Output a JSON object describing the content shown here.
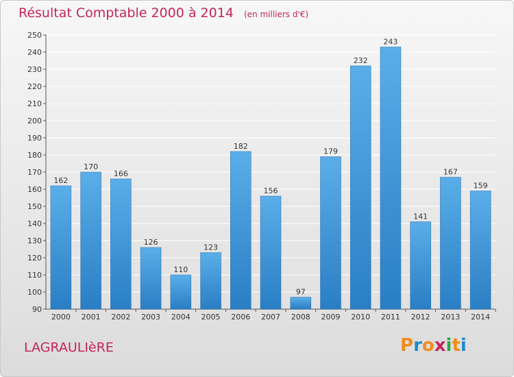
{
  "title": "Résultat Comptable 2000 à 2014",
  "unit_note": "(en milliers d'€)",
  "commune": "LAGRAULIèRE",
  "logo": {
    "text": "Proxiti",
    "letters": [
      "P",
      "r",
      "o",
      "x",
      "i",
      "t",
      "i"
    ],
    "colors": [
      "#f08c1e",
      "#1e8ccc",
      "#f08c1e",
      "#c4245c",
      "#2ea84a",
      "#f08c1e",
      "#1e8ccc"
    ]
  },
  "colors": {
    "bar_top": "#5aaee8",
    "bar_bottom": "#2a7ec4",
    "title": "#c4245c",
    "grid": "#ffffff"
  },
  "chart_data": {
    "type": "bar",
    "title": "Résultat Comptable 2000 à 2014",
    "subtitle": "(en milliers d'€)",
    "categories": [
      "2000",
      "2001",
      "2002",
      "2003",
      "2004",
      "2005",
      "2006",
      "2007",
      "2008",
      "2009",
      "2010",
      "2011",
      "2012",
      "2013",
      "2014"
    ],
    "values": [
      162,
      170,
      166,
      126,
      110,
      123,
      182,
      156,
      97,
      179,
      232,
      243,
      141,
      167,
      159
    ],
    "ylim": [
      90,
      250
    ],
    "yticks": [
      90,
      100,
      110,
      120,
      130,
      140,
      150,
      160,
      170,
      180,
      190,
      200,
      210,
      220,
      230,
      240,
      250
    ],
    "grid": true,
    "xlabel": "",
    "ylabel": ""
  }
}
